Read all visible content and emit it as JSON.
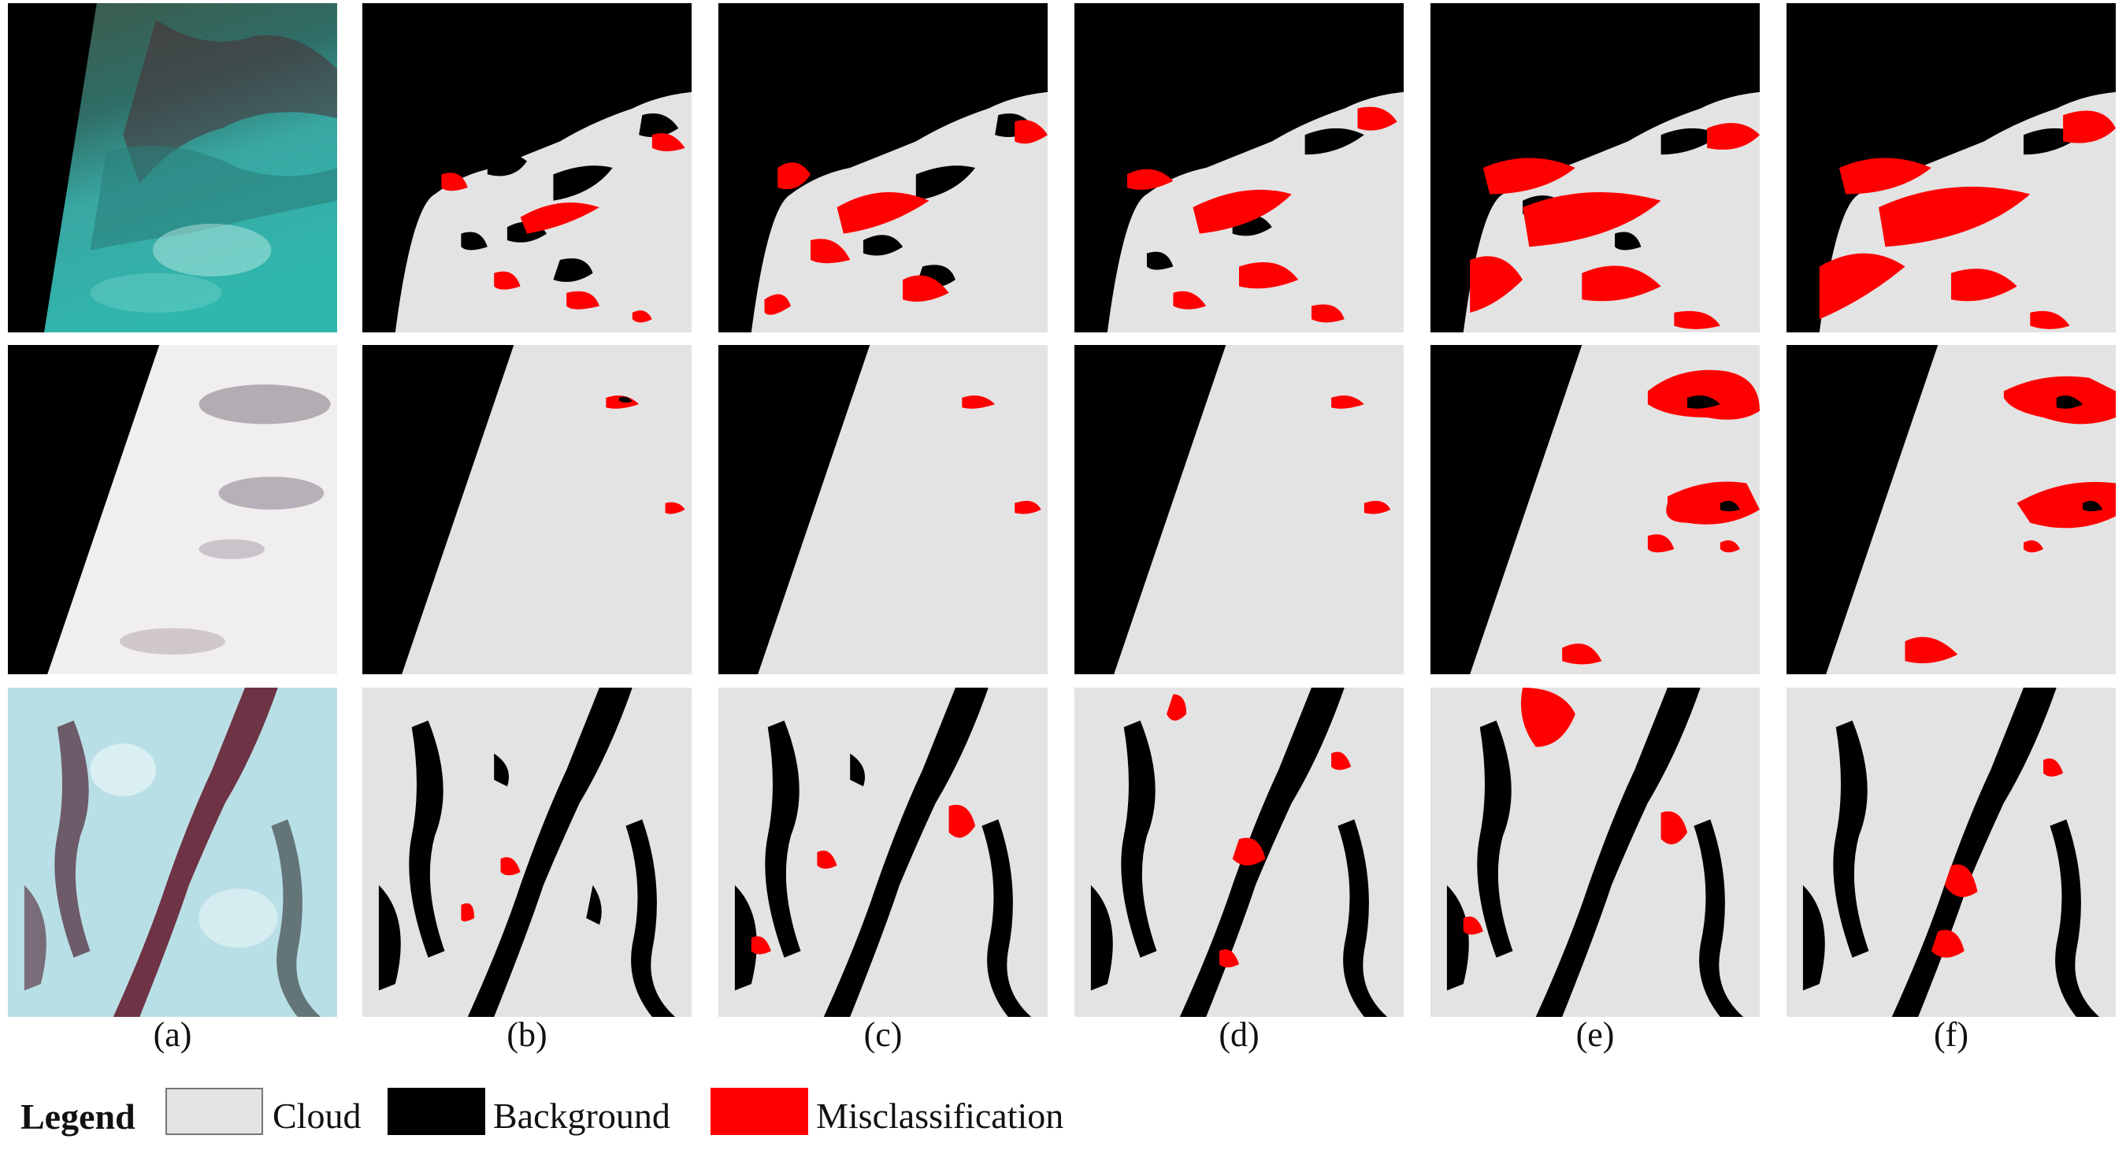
{
  "figure": {
    "column_labels": [
      "(a)",
      "(b)",
      "(c)",
      "(d)",
      "(e)",
      "(f)"
    ],
    "rows": 3
  },
  "legend": {
    "title": "Legend",
    "items": [
      {
        "label": "Cloud",
        "color": "#e3e3e3"
      },
      {
        "label": "Background",
        "color": "#000000"
      },
      {
        "label": "Misclassification",
        "color": "#ff0000"
      }
    ]
  },
  "colors": {
    "cloud": "#e3e3e3",
    "background": "#000000",
    "misclassification": "#ff0000",
    "scene1_teal": "#2f9c97",
    "scene2_white": "#f1eef0",
    "scene3_ice": "#b9dfe6",
    "scene3_maroon": "#6e3344"
  }
}
